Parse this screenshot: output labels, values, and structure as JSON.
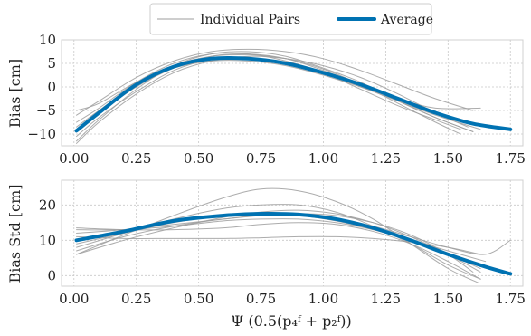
{
  "chart_data": [
    {
      "type": "line",
      "ylabel": "Bias [cm]",
      "xlabel": "",
      "xlim": [
        -0.05,
        1.8
      ],
      "ylim": [
        -12.5,
        10
      ],
      "xticks": [
        0.0,
        0.25,
        0.5,
        0.75,
        1.0,
        1.25,
        1.5,
        1.75
      ],
      "xtick_labels": [
        "0.00",
        "0.25",
        "0.50",
        "0.75",
        "1.00",
        "1.25",
        "1.50",
        "1.75"
      ],
      "yticks": [
        -10,
        -5,
        0,
        5,
        10
      ],
      "ytick_labels": [
        "−10",
        "−5",
        "0",
        "5",
        "10"
      ],
      "grid": true,
      "legend": {
        "placement": "top-center, outside",
        "entries": [
          {
            "label": "Individual Pairs",
            "color": "#9e9e9e"
          },
          {
            "label": "Average",
            "color": "#0072b2"
          }
        ]
      },
      "series": [
        {
          "name": "Individual Pairs",
          "color": "#9e9e9e",
          "x": [
            0.01,
            0.1,
            0.25,
            0.4,
            0.55,
            0.7,
            0.85,
            1.0,
            1.15,
            1.3,
            1.45,
            1.6
          ],
          "y": [
            -11.5,
            -7,
            -0.5,
            4.5,
            7,
            7.5,
            6.5,
            4,
            1,
            -3,
            -6.5,
            -9.5
          ]
        },
        {
          "name": "Individual Pairs",
          "color": "#9e9e9e",
          "x": [
            0.01,
            0.1,
            0.25,
            0.4,
            0.55,
            0.7,
            0.85,
            1.0,
            1.15,
            1.3,
            1.45,
            1.55
          ],
          "y": [
            -8.5,
            -5,
            0.5,
            4.5,
            6.5,
            6.8,
            6,
            3.8,
            0.5,
            -3.5,
            -7.5,
            -10
          ]
        },
        {
          "name": "Individual Pairs",
          "color": "#9e9e9e",
          "x": [
            0.01,
            0.1,
            0.25,
            0.4,
            0.55,
            0.7,
            0.85,
            1.0,
            1.15,
            1.3,
            1.45,
            1.6
          ],
          "y": [
            -6,
            -3,
            2,
            5.5,
            7.5,
            8,
            7.5,
            6,
            3.5,
            0.5,
            -2.5,
            -5
          ]
        },
        {
          "name": "Individual Pairs",
          "color": "#9e9e9e",
          "x": [
            0.01,
            0.1,
            0.25,
            0.4,
            0.55,
            0.7,
            0.85,
            1.0,
            1.15,
            1.3,
            1.45,
            1.63
          ],
          "y": [
            -10.5,
            -6.5,
            -1,
            3.5,
            5.8,
            6,
            5,
            3,
            0,
            -3,
            -6,
            -9
          ]
        },
        {
          "name": "Individual Pairs",
          "color": "#9e9e9e",
          "x": [
            0.01,
            0.1,
            0.25,
            0.4,
            0.55,
            0.7,
            0.85,
            1.0,
            1.15,
            1.3,
            1.45,
            1.63
          ],
          "y": [
            -5,
            -3.5,
            1,
            4,
            5.5,
            5.5,
            4.5,
            2.5,
            0,
            -2.5,
            -4.5,
            -4.5
          ]
        },
        {
          "name": "Individual Pairs",
          "color": "#9e9e9e",
          "x": [
            0.01,
            0.1,
            0.25,
            0.4,
            0.55,
            0.7,
            0.85,
            1.0,
            1.15,
            1.3,
            1.45,
            1.58
          ],
          "y": [
            -12,
            -7.5,
            -1.5,
            3,
            5.5,
            6.5,
            6,
            4.5,
            2,
            -1.5,
            -5.5,
            -8.5
          ]
        },
        {
          "name": "Individual Pairs",
          "color": "#9e9e9e",
          "x": [
            0.01,
            0.1,
            0.25,
            0.4,
            0.55,
            0.7,
            0.85,
            1.0,
            1.15,
            1.3,
            1.45,
            1.6
          ],
          "y": [
            -9,
            -5.5,
            0,
            4,
            6.5,
            7,
            6,
            3.5,
            0.5,
            -3,
            -6.5,
            -9.5
          ]
        },
        {
          "name": "Individual Pairs",
          "color": "#9e9e9e",
          "x": [
            0.01,
            0.1,
            0.25,
            0.4,
            0.55,
            0.7,
            0.85,
            1.0,
            1.15,
            1.3,
            1.45,
            1.55
          ],
          "y": [
            -7.5,
            -4.5,
            1,
            5,
            7,
            7,
            5.5,
            3,
            -0.5,
            -4,
            -7,
            -9
          ]
        },
        {
          "name": "Average",
          "color": "#0072b2",
          "x": [
            0.01,
            0.1,
            0.25,
            0.4,
            0.55,
            0.7,
            0.85,
            1.0,
            1.15,
            1.3,
            1.45,
            1.6,
            1.75
          ],
          "y": [
            -9.3,
            -5.5,
            0.5,
            4.3,
            6,
            6,
            5,
            3,
            0.5,
            -2.5,
            -5.5,
            -7.8,
            -9
          ]
        }
      ]
    },
    {
      "type": "line",
      "ylabel": "Bias Std [cm]",
      "xlabel": "Ψ (0.5(p₄ᶠ + p₂ᶠ))",
      "xlim": [
        -0.05,
        1.8
      ],
      "ylim": [
        -3,
        27
      ],
      "xticks": [
        0.0,
        0.25,
        0.5,
        0.75,
        1.0,
        1.25,
        1.5,
        1.75
      ],
      "xtick_labels": [
        "0.00",
        "0.25",
        "0.50",
        "0.75",
        "1.00",
        "1.25",
        "1.50",
        "1.75"
      ],
      "yticks": [
        0,
        10,
        20
      ],
      "ytick_labels": [
        "0",
        "10",
        "20"
      ],
      "grid": true,
      "series": [
        {
          "name": "Individual Pairs",
          "color": "#9e9e9e",
          "x": [
            0.01,
            0.2,
            0.4,
            0.6,
            0.75,
            0.9,
            1.05,
            1.2,
            1.35,
            1.5,
            1.62
          ],
          "y": [
            6,
            11.5,
            17,
            22,
            24.5,
            24,
            21,
            16,
            9,
            2,
            -2
          ]
        },
        {
          "name": "Individual Pairs",
          "color": "#9e9e9e",
          "x": [
            0.01,
            0.2,
            0.4,
            0.6,
            0.75,
            0.9,
            1.05,
            1.2,
            1.35,
            1.5,
            1.63
          ],
          "y": [
            8,
            12,
            16,
            19,
            20,
            20,
            18,
            14,
            9,
            3,
            -1
          ]
        },
        {
          "name": "Individual Pairs",
          "color": "#9e9e9e",
          "x": [
            0.01,
            0.2,
            0.4,
            0.6,
            0.75,
            0.9,
            1.05,
            1.2,
            1.35,
            1.5,
            1.63
          ],
          "y": [
            13.5,
            13,
            13,
            13.5,
            14.5,
            15,
            14.5,
            12.5,
            9,
            4,
            -1
          ]
        },
        {
          "name": "Individual Pairs",
          "color": "#9e9e9e",
          "x": [
            0.01,
            0.2,
            0.4,
            0.6,
            0.75,
            0.9,
            1.05,
            1.2,
            1.35,
            1.5,
            1.63
          ],
          "y": [
            11,
            10.5,
            10.5,
            10.5,
            10.7,
            11,
            11,
            10.5,
            9.5,
            8,
            6
          ]
        },
        {
          "name": "Individual Pairs",
          "color": "#9e9e9e",
          "x": [
            0.01,
            0.2,
            0.4,
            0.6,
            0.75,
            0.9,
            1.05,
            1.2,
            1.35,
            1.5,
            1.63
          ],
          "y": [
            6,
            10,
            13.5,
            16.5,
            18,
            18.5,
            17.5,
            15,
            11,
            6,
            1
          ]
        },
        {
          "name": "Individual Pairs",
          "color": "#9e9e9e",
          "x": [
            0.01,
            0.2,
            0.4,
            0.6,
            0.75,
            0.9,
            1.05,
            1.2,
            1.35,
            1.5,
            1.63
          ],
          "y": [
            13,
            13,
            14,
            15.5,
            16,
            16,
            15,
            13,
            10,
            6,
            2
          ]
        },
        {
          "name": "Individual Pairs",
          "color": "#9e9e9e",
          "x": [
            0.01,
            0.2,
            0.4,
            0.6,
            0.75,
            0.9,
            1.05,
            1.2,
            1.35,
            1.5,
            1.65
          ],
          "y": [
            9,
            12,
            15,
            17,
            17.5,
            17,
            15.5,
            13,
            10,
            7,
            4
          ]
        },
        {
          "name": "Individual Pairs",
          "color": "#9e9e9e",
          "x": [
            0.01,
            0.2,
            0.4,
            0.6,
            0.75,
            0.9,
            1.05,
            1.2,
            1.35,
            1.5,
            1.65,
            1.75
          ],
          "y": [
            7,
            11,
            14,
            16,
            17,
            17,
            16,
            14,
            11,
            8,
            6,
            10
          ]
        },
        {
          "name": "Individual Pairs",
          "color": "#9e9e9e",
          "x": [
            0.01,
            0.2,
            0.4,
            0.6,
            0.75,
            0.9,
            1.05,
            1.2,
            1.35,
            1.5,
            1.6
          ],
          "y": [
            12,
            13,
            14.5,
            16,
            17,
            17.5,
            17,
            15,
            11.5,
            6,
            1
          ]
        },
        {
          "name": "Average",
          "color": "#0072b2",
          "x": [
            0.01,
            0.2,
            0.4,
            0.6,
            0.75,
            0.9,
            1.05,
            1.2,
            1.35,
            1.5,
            1.65,
            1.75
          ],
          "y": [
            10,
            12.5,
            15.5,
            17,
            17.5,
            17.3,
            16,
            13.5,
            10,
            6,
            2.5,
            0.5
          ]
        }
      ]
    }
  ]
}
